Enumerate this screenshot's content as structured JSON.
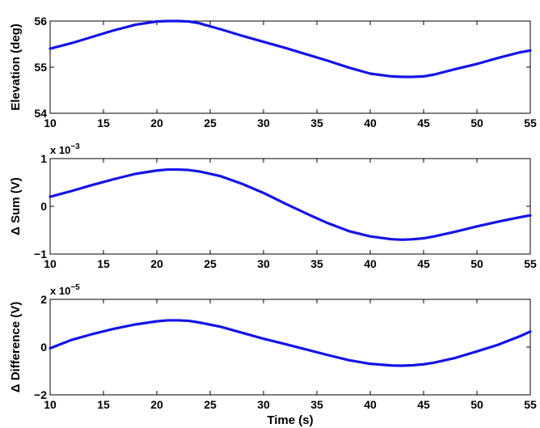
{
  "chart_data": [
    {
      "type": "line",
      "ylabel": "Elevation (deg)",
      "xlabel": "",
      "exponent_label": "",
      "xlim": [
        10,
        55
      ],
      "ylim": [
        54,
        56
      ],
      "x_ticks": [
        10,
        15,
        20,
        25,
        30,
        35,
        40,
        45,
        50,
        55
      ],
      "y_ticks": [
        54,
        55,
        56
      ],
      "y_tick_labels": [
        "54",
        "55",
        "56"
      ],
      "grid": false,
      "line_color": "#1414e6",
      "series": [
        {
          "x": [
            10,
            12,
            14,
            16,
            18,
            20,
            21,
            22,
            23,
            24,
            26,
            28,
            30,
            32,
            34,
            36,
            38,
            40,
            42,
            43,
            44,
            45,
            46,
            48,
            50,
            52,
            54,
            55
          ],
          "values": [
            55.4,
            55.52,
            55.66,
            55.8,
            55.92,
            55.99,
            56.0,
            56.0,
            55.99,
            55.95,
            55.82,
            55.68,
            55.55,
            55.42,
            55.28,
            55.14,
            54.99,
            54.86,
            54.8,
            54.79,
            54.79,
            54.8,
            54.84,
            54.96,
            55.07,
            55.2,
            55.32,
            55.36
          ]
        }
      ]
    },
    {
      "type": "line",
      "ylabel": "Δ Sum (V)",
      "xlabel": "",
      "exponent_label": "x 10",
      "exponent_power": "−3",
      "xlim": [
        10,
        55
      ],
      "ylim": [
        -1,
        1
      ],
      "x_ticks": [
        10,
        15,
        20,
        25,
        30,
        35,
        40,
        45,
        50,
        55
      ],
      "y_ticks": [
        -1,
        0,
        1
      ],
      "y_tick_labels": [
        "−1",
        "0",
        "1"
      ],
      "grid": false,
      "line_color": "#1414e6",
      "series": [
        {
          "x": [
            10,
            12,
            14,
            16,
            18,
            20,
            21,
            22,
            23,
            24,
            26,
            28,
            30,
            32,
            34,
            36,
            38,
            40,
            42,
            43,
            44,
            45,
            46,
            48,
            50,
            52,
            54,
            55
          ],
          "values": [
            0.2,
            0.32,
            0.45,
            0.57,
            0.68,
            0.75,
            0.77,
            0.77,
            0.76,
            0.73,
            0.63,
            0.47,
            0.28,
            0.06,
            -0.15,
            -0.35,
            -0.52,
            -0.63,
            -0.69,
            -0.7,
            -0.69,
            -0.67,
            -0.63,
            -0.53,
            -0.42,
            -0.32,
            -0.23,
            -0.19
          ]
        }
      ]
    },
    {
      "type": "line",
      "ylabel": "Δ Difference (V)",
      "xlabel": "Time (s)",
      "exponent_label": "x 10",
      "exponent_power": "−5",
      "xlim": [
        10,
        55
      ],
      "ylim": [
        -2,
        2
      ],
      "x_ticks": [
        10,
        15,
        20,
        25,
        30,
        35,
        40,
        45,
        50,
        55
      ],
      "y_ticks": [
        -2,
        0,
        2
      ],
      "y_tick_labels": [
        "−2",
        "0",
        "2"
      ],
      "grid": false,
      "line_color": "#1414e6",
      "series": [
        {
          "x": [
            10,
            12,
            14,
            16,
            18,
            20,
            21,
            22,
            23,
            24,
            26,
            28,
            30,
            32,
            34,
            36,
            38,
            40,
            42,
            43,
            44,
            45,
            46,
            48,
            50,
            52,
            54,
            55
          ],
          "values": [
            -0.05,
            0.3,
            0.55,
            0.77,
            0.95,
            1.08,
            1.12,
            1.12,
            1.1,
            1.03,
            0.85,
            0.6,
            0.35,
            0.13,
            -0.1,
            -0.33,
            -0.55,
            -0.7,
            -0.77,
            -0.78,
            -0.76,
            -0.72,
            -0.65,
            -0.45,
            -0.18,
            0.1,
            0.45,
            0.65
          ]
        }
      ]
    }
  ]
}
